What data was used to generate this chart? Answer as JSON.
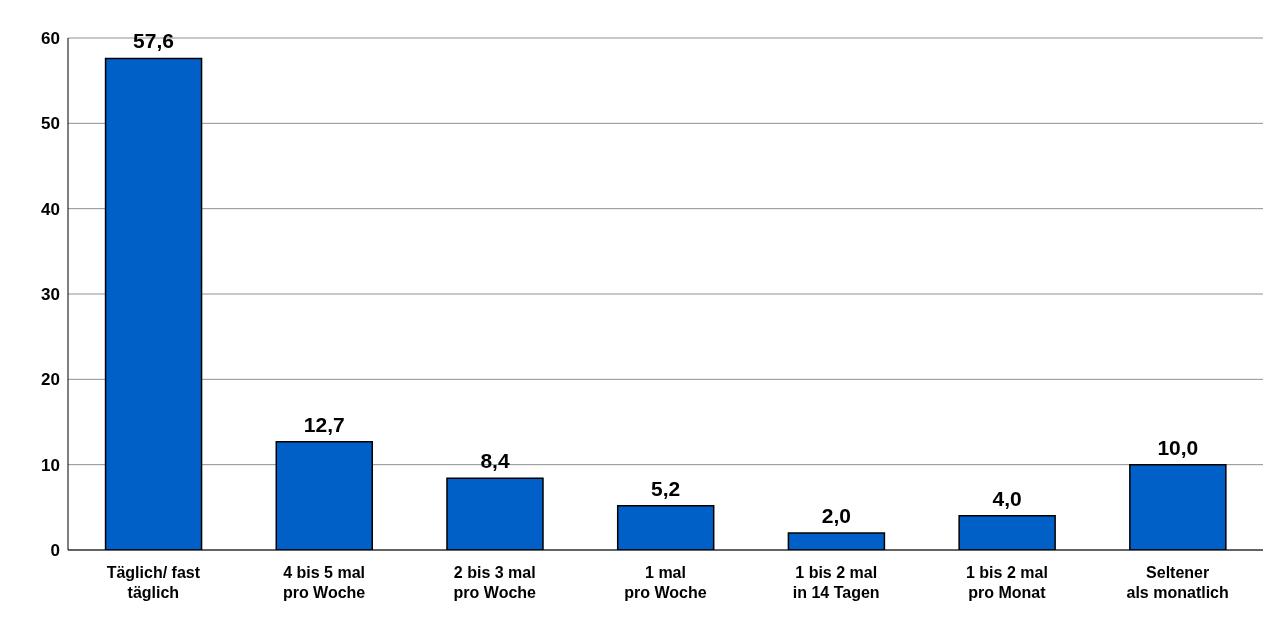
{
  "chart_data": {
    "type": "bar",
    "categories": [
      "Täglich/ fast\ntäglich",
      "4 bis 5 mal\npro Woche",
      "2 bis 3 mal\npro Woche",
      "1 mal\npro Woche",
      "1 bis 2 mal\nin 14 Tagen",
      "1 bis 2 mal\npro Monat",
      "Seltener\nals monatlich"
    ],
    "values": [
      57.6,
      12.7,
      8.4,
      5.2,
      2.0,
      4.0,
      10.0
    ],
    "value_labels": [
      "57,6",
      "12,7",
      "8,4",
      "5,2",
      "2,0",
      "4,0",
      "10,0"
    ],
    "color": "#0060c8",
    "ylim": [
      0,
      60
    ],
    "yticks": [
      0,
      10,
      20,
      30,
      40,
      50,
      60
    ],
    "grid": "y"
  }
}
